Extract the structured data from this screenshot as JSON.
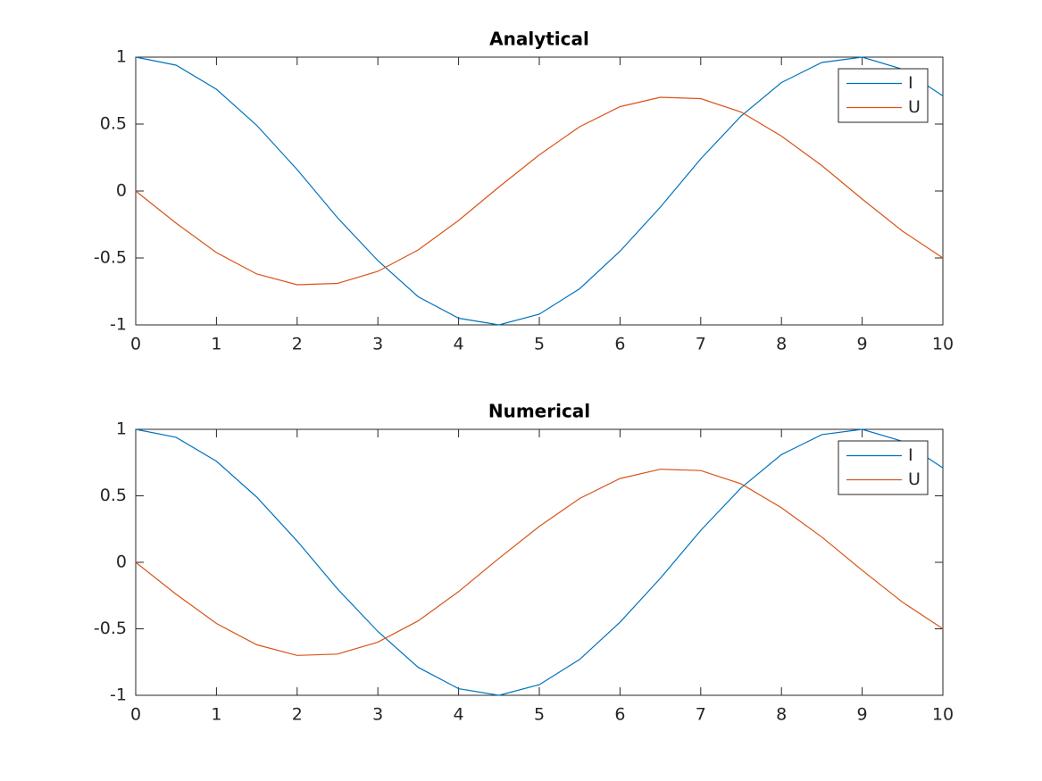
{
  "chart_data": [
    {
      "type": "line",
      "title": "Analytical",
      "x": [
        0,
        0.5,
        1,
        1.5,
        2,
        2.5,
        3,
        3.5,
        4,
        4.5,
        5,
        5.5,
        6,
        6.5,
        7,
        7.5,
        8,
        8.5,
        9,
        9.5,
        10
      ],
      "series": [
        {
          "name": "I",
          "color": "#0072bd",
          "values": [
            1,
            0.94,
            0.76,
            0.49,
            0.16,
            -0.2,
            -0.52,
            -0.79,
            -0.95,
            -1,
            -0.92,
            -0.73,
            -0.45,
            -0.12,
            0.24,
            0.56,
            0.81,
            0.96,
            1,
            0.91,
            0.71
          ]
        },
        {
          "name": "U",
          "color": "#d95319",
          "values": [
            0,
            -0.24,
            -0.46,
            -0.62,
            -0.7,
            -0.69,
            -0.6,
            -0.44,
            -0.22,
            0.03,
            0.27,
            0.48,
            0.63,
            0.7,
            0.69,
            0.59,
            0.41,
            0.19,
            -0.06,
            -0.3,
            -0.5
          ]
        }
      ],
      "xlim": [
        0,
        10
      ],
      "xticks": [
        0,
        1,
        2,
        3,
        4,
        5,
        6,
        7,
        8,
        9,
        10
      ],
      "ylim": [
        -1,
        1
      ],
      "yticks": [
        -1,
        -0.5,
        0,
        0.5,
        1
      ],
      "legend": "upper right"
    },
    {
      "type": "line",
      "title": "Numerical",
      "x": [
        0,
        0.5,
        1,
        1.5,
        2,
        2.5,
        3,
        3.5,
        4,
        4.5,
        5,
        5.5,
        6,
        6.5,
        7,
        7.5,
        8,
        8.5,
        9,
        9.5,
        10
      ],
      "series": [
        {
          "name": "I",
          "color": "#0072bd",
          "values": [
            1,
            0.94,
            0.76,
            0.49,
            0.16,
            -0.2,
            -0.52,
            -0.79,
            -0.95,
            -1,
            -0.92,
            -0.73,
            -0.45,
            -0.12,
            0.24,
            0.56,
            0.81,
            0.96,
            1,
            0.91,
            0.71
          ]
        },
        {
          "name": "U",
          "color": "#d95319",
          "values": [
            0,
            -0.24,
            -0.46,
            -0.62,
            -0.7,
            -0.69,
            -0.6,
            -0.44,
            -0.22,
            0.03,
            0.27,
            0.48,
            0.63,
            0.7,
            0.69,
            0.59,
            0.41,
            0.19,
            -0.06,
            -0.3,
            -0.5
          ]
        }
      ],
      "xlim": [
        0,
        10
      ],
      "xticks": [
        0,
        1,
        2,
        3,
        4,
        5,
        6,
        7,
        8,
        9,
        10
      ],
      "ylim": [
        -1,
        1
      ],
      "yticks": [
        -1,
        -0.5,
        0,
        0.5,
        1
      ],
      "legend": "upper right"
    }
  ]
}
